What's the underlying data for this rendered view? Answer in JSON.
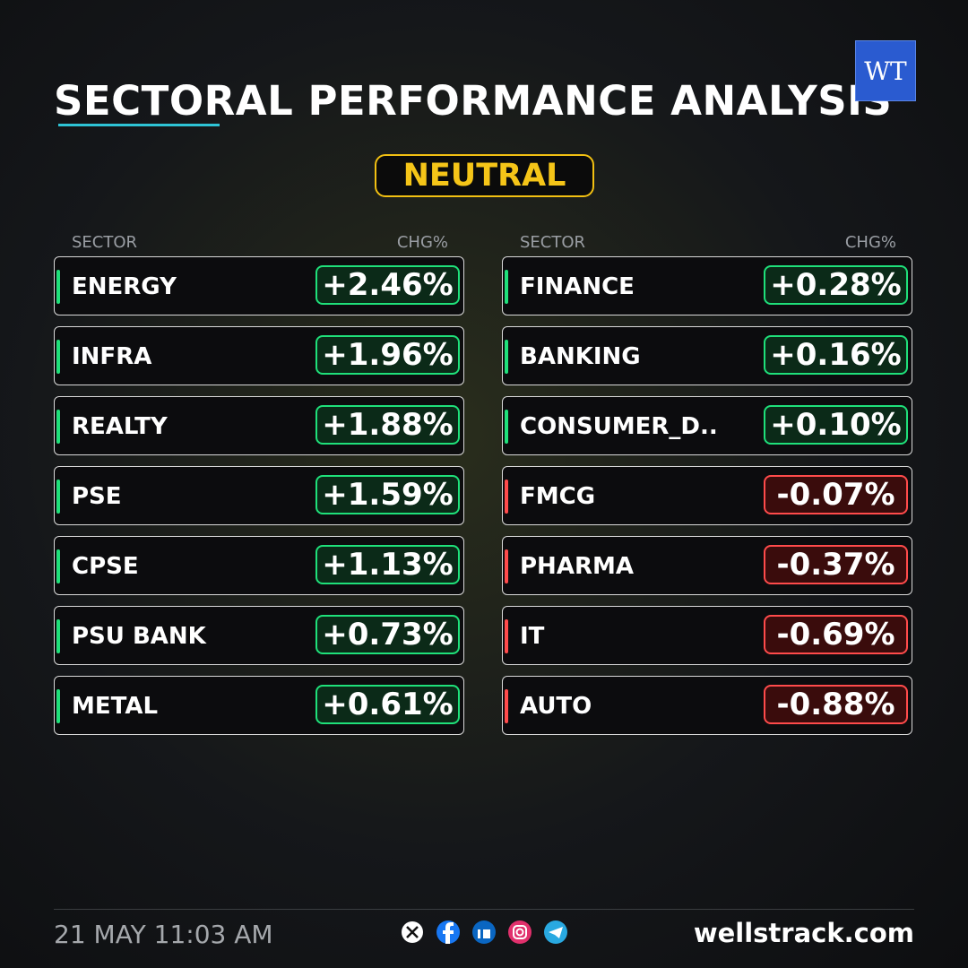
{
  "header": {
    "title": "SECTORAL PERFORMANCE ANALYSIS",
    "logo": "WT",
    "badge": "NEUTRAL"
  },
  "columns": [
    {
      "headers": [
        "SECTOR",
        "CHG%"
      ],
      "rows": [
        {
          "name": "ENERGY",
          "change": "+2.46%"
        },
        {
          "name": "INFRA",
          "change": "+1.96%"
        },
        {
          "name": "REALTY",
          "change": "+1.88%"
        },
        {
          "name": "PSE",
          "change": "+1.59%"
        },
        {
          "name": "CPSE",
          "change": "+1.13%"
        },
        {
          "name": "PSU BANK",
          "change": "+0.73%"
        },
        {
          "name": "METAL",
          "change": "+0.61%"
        }
      ]
    },
    {
      "headers": [
        "SECTOR",
        "CHG%"
      ],
      "rows": [
        {
          "name": "FINANCE",
          "change": "+0.28%"
        },
        {
          "name": "BANKING",
          "change": "+0.16%"
        },
        {
          "name": "CONSUMER_D..",
          "change": "+0.10%"
        },
        {
          "name": "FMCG",
          "change": "-0.07%"
        },
        {
          "name": "PHARMA",
          "change": "-0.37%"
        },
        {
          "name": "IT",
          "change": "-0.69%"
        },
        {
          "name": "AUTO",
          "change": "-0.88%"
        }
      ]
    }
  ],
  "footer": {
    "datetime": "21 MAY 11:03 AM",
    "site": "wellstrack.com"
  }
}
